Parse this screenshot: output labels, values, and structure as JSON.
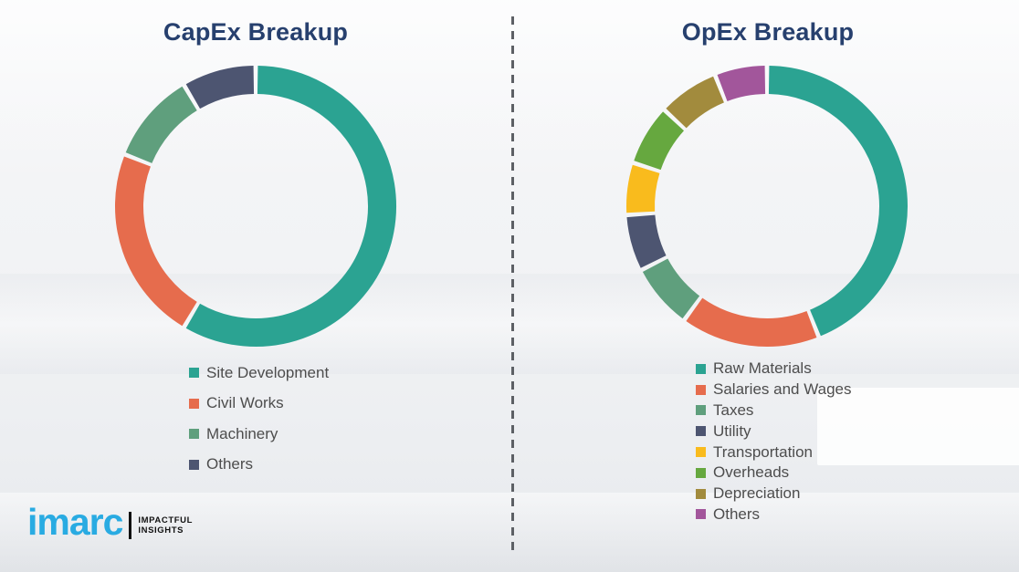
{
  "page": {
    "background_color": "#f2f3f5",
    "divider_color": "#5d6065"
  },
  "logo": {
    "brand": "imarc",
    "brand_color": "#29abe2",
    "tagline_line1": "IMPACTFUL",
    "tagline_line2": "INSIGHTS"
  },
  "chart_data": [
    {
      "type": "pie",
      "subtype": "donut",
      "title": "CapEx Breakup",
      "title_color": "#27406e",
      "categories": [
        "Site Development",
        "Civil Works",
        "Machinery",
        "Others"
      ],
      "values": [
        58.5,
        22.5,
        10.5,
        8.5
      ],
      "colors": [
        "#2ba392",
        "#e66c4d",
        "#5f9f7d",
        "#4d5571"
      ],
      "start_angle_deg": 0,
      "direction": "clockwise",
      "legend_position": "bottom",
      "data_labels": "none"
    },
    {
      "type": "pie",
      "subtype": "donut",
      "title": "OpEx Breakup",
      "title_color": "#27406e",
      "categories": [
        "Raw Materials",
        "Salaries and Wages",
        "Taxes",
        "Utility",
        "Transportation",
        "Overheads",
        "Depreciation",
        "Others"
      ],
      "values": [
        44,
        16,
        7.5,
        6.5,
        6,
        7,
        7,
        6
      ],
      "colors": [
        "#2ba392",
        "#e66c4d",
        "#5f9f7d",
        "#4d5571",
        "#f9bb1d",
        "#66a83f",
        "#a28b3d",
        "#a2569b"
      ],
      "start_angle_deg": 0,
      "direction": "clockwise",
      "legend_position": "bottom",
      "data_labels": "none"
    }
  ]
}
